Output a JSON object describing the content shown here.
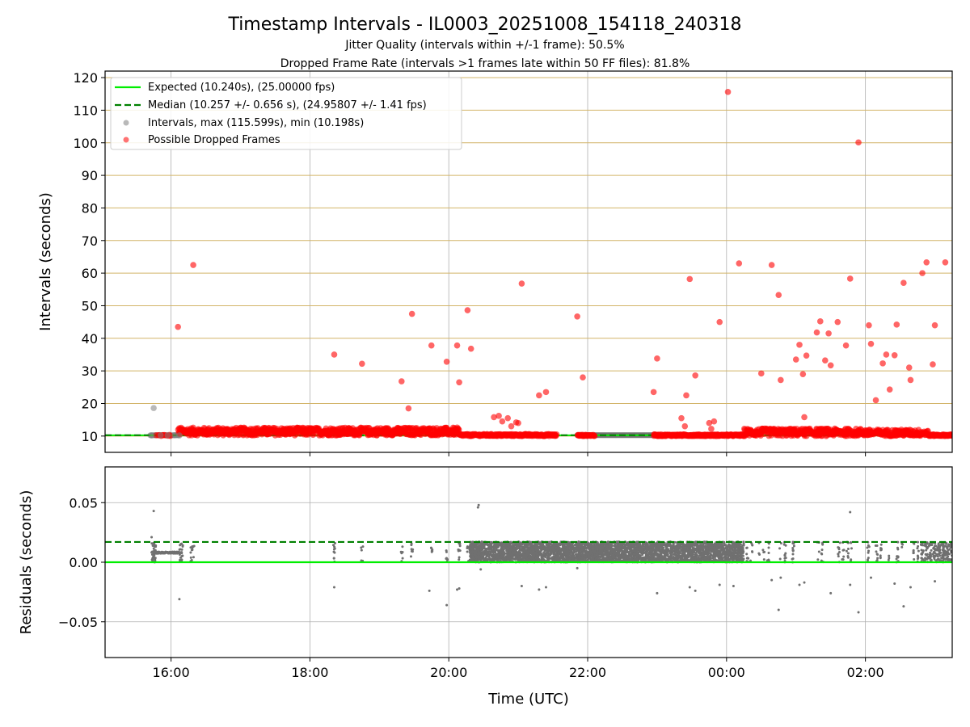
{
  "chart_data": [
    {
      "type": "scatter",
      "panel": "top",
      "title": "Timestamp Intervals - IL0003_20251008_154118_240318",
      "subtitle1": "Jitter Quality (intervals within +/-1 frame): 50.5%",
      "subtitle2": "Dropped Frame Rate (intervals >1 frames late within 50 FF files): 81.8%",
      "xlabel": "",
      "ylabel": "Intervals (seconds)",
      "xlim_hours": [
        15.05,
        27.25
      ],
      "ylim": [
        5,
        122
      ],
      "yticks": [
        10,
        20,
        30,
        40,
        50,
        60,
        70,
        80,
        90,
        100,
        110,
        120
      ],
      "ytick_labels": [
        "10",
        "20",
        "30",
        "40",
        "50",
        "60",
        "70",
        "80",
        "90",
        "100",
        "110",
        "120"
      ],
      "grid": "on",
      "legend_position": "top-left",
      "legend": {
        "expected": "Expected (10.240s), (25.00000 fps)",
        "median": "Median (10.257 +/- 0.656 s), (24.95807 +/- 1.41 fps)",
        "intervals": "Intervals, max (115.599s), min (10.198s)",
        "dropped": "Possible Dropped Frames"
      },
      "expected_value": 10.24,
      "median_value": 10.257,
      "series": [
        {
          "name": "Intervals",
          "color": "#808080",
          "points": [
            [
              15.75,
              18.6
            ],
            [
              15.72,
              10.2
            ],
            [
              15.85,
              10.25
            ],
            [
              15.95,
              10.25
            ],
            [
              16.05,
              10.25
            ],
            [
              16.12,
              10.2
            ]
          ]
        },
        {
          "name": "Possible Dropped Frames",
          "color": "#ff0000",
          "points": [
            [
              16.1,
              43.5
            ],
            [
              16.32,
              62.5
            ],
            [
              18.35,
              35.0
            ],
            [
              18.75,
              32.2
            ],
            [
              19.32,
              26.8
            ],
            [
              19.42,
              18.5
            ],
            [
              19.47,
              47.5
            ],
            [
              19.75,
              37.8
            ],
            [
              19.97,
              32.8
            ],
            [
              20.12,
              37.8
            ],
            [
              20.15,
              26.5
            ],
            [
              20.27,
              48.6
            ],
            [
              20.32,
              36.8
            ],
            [
              20.65,
              15.8
            ],
            [
              20.72,
              16.2
            ],
            [
              20.77,
              14.5
            ],
            [
              20.85,
              15.5
            ],
            [
              20.9,
              13.0
            ],
            [
              20.97,
              14.2
            ],
            [
              21.0,
              14.0
            ],
            [
              21.05,
              56.8
            ],
            [
              21.3,
              22.5
            ],
            [
              21.4,
              23.5
            ],
            [
              21.85,
              46.7
            ],
            [
              21.93,
              28.0
            ],
            [
              22.95,
              23.5
            ],
            [
              23.0,
              33.8
            ],
            [
              23.35,
              15.5
            ],
            [
              23.4,
              13.0
            ],
            [
              23.42,
              22.5
            ],
            [
              23.47,
              58.2
            ],
            [
              23.55,
              28.6
            ],
            [
              23.75,
              14.0
            ],
            [
              23.78,
              12.2
            ],
            [
              23.82,
              14.5
            ],
            [
              23.9,
              45.0
            ],
            [
              24.02,
              115.6
            ],
            [
              24.18,
              63.0
            ],
            [
              24.5,
              29.2
            ],
            [
              24.65,
              62.5
            ],
            [
              24.75,
              53.3
            ],
            [
              24.78,
              27.2
            ],
            [
              25.0,
              33.5
            ],
            [
              25.05,
              38.0
            ],
            [
              25.1,
              29.0
            ],
            [
              25.12,
              15.8
            ],
            [
              25.15,
              34.7
            ],
            [
              25.3,
              41.8
            ],
            [
              25.35,
              45.2
            ],
            [
              25.42,
              33.2
            ],
            [
              25.47,
              41.5
            ],
            [
              25.5,
              31.7
            ],
            [
              25.6,
              45.0
            ],
            [
              25.72,
              37.8
            ],
            [
              25.78,
              58.3
            ],
            [
              25.9,
              100.1
            ],
            [
              26.05,
              44.0
            ],
            [
              26.08,
              38.3
            ],
            [
              26.15,
              21.0
            ],
            [
              26.25,
              32.3
            ],
            [
              26.3,
              35.0
            ],
            [
              26.35,
              24.3
            ],
            [
              26.42,
              34.8
            ],
            [
              26.45,
              44.2
            ],
            [
              26.55,
              57.0
            ],
            [
              26.63,
              31.0
            ],
            [
              26.65,
              27.2
            ],
            [
              26.82,
              60.0
            ],
            [
              26.88,
              63.3
            ],
            [
              26.97,
              32.0
            ],
            [
              27.0,
              44.0
            ],
            [
              27.15,
              63.3
            ]
          ]
        }
      ]
    },
    {
      "type": "scatter",
      "panel": "bottom",
      "xlabel": "Time (UTC)",
      "ylabel": "Residuals (seconds)",
      "xlim_hours": [
        15.05,
        27.25
      ],
      "ylim": [
        -0.08,
        0.08
      ],
      "yticks": [
        -0.05,
        0.0,
        0.05
      ],
      "ytick_labels": [
        "−0.05",
        "0.00",
        "0.05"
      ],
      "xticks_hours": [
        16,
        18,
        20,
        22,
        24,
        26
      ],
      "xtick_labels": [
        "16:00",
        "18:00",
        "20:00",
        "22:00",
        "00:00",
        "02:00"
      ],
      "grid": "on",
      "zero_line": 0.0,
      "median_residual": 0.017,
      "series": [
        {
          "name": "Residuals",
          "color": "#808080",
          "points": [
            [
              15.75,
              0.043
            ],
            [
              15.72,
              0.021
            ],
            [
              16.12,
              -0.031
            ],
            [
              18.35,
              -0.021
            ],
            [
              19.72,
              -0.024
            ],
            [
              19.97,
              -0.036
            ],
            [
              20.15,
              -0.022
            ],
            [
              20.12,
              -0.023
            ],
            [
              20.42,
              0.046
            ],
            [
              20.43,
              0.048
            ],
            [
              20.46,
              -0.006
            ],
            [
              21.05,
              -0.02
            ],
            [
              21.3,
              -0.023
            ],
            [
              21.4,
              -0.021
            ],
            [
              21.85,
              -0.005
            ],
            [
              23.0,
              -0.026
            ],
            [
              23.47,
              -0.021
            ],
            [
              23.55,
              -0.024
            ],
            [
              23.9,
              -0.019
            ],
            [
              24.1,
              -0.02
            ],
            [
              24.65,
              -0.015
            ],
            [
              24.75,
              -0.04
            ],
            [
              24.78,
              -0.013
            ],
            [
              25.05,
              -0.019
            ],
            [
              25.12,
              -0.017
            ],
            [
              25.5,
              -0.026
            ],
            [
              25.78,
              0.042
            ],
            [
              25.78,
              -0.019
            ],
            [
              25.9,
              -0.042
            ],
            [
              26.08,
              -0.013
            ],
            [
              26.42,
              -0.018
            ],
            [
              26.55,
              -0.037
            ],
            [
              26.65,
              -0.021
            ],
            [
              27.0,
              -0.016
            ]
          ]
        }
      ]
    }
  ]
}
